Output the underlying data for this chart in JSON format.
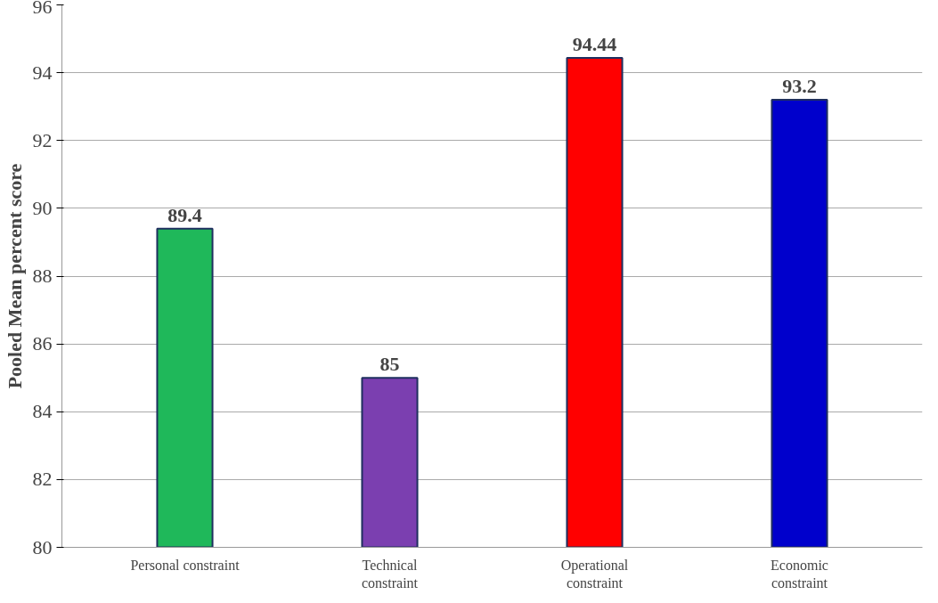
{
  "chart_data": {
    "type": "bar",
    "ylabel": "Pooled Mean percent score",
    "categories": [
      "Personal constraint",
      "Technical\nconstraint",
      "Operational\nconstraint",
      "Economic\nconstraint"
    ],
    "values": [
      89.4,
      85,
      94.44,
      93.2
    ],
    "colors": [
      "#1fb85a",
      "#7b3fb0",
      "#ff0000",
      "#0000cc"
    ],
    "ylim": [
      80,
      96
    ],
    "yticks": [
      80,
      82,
      84,
      86,
      88,
      90,
      92,
      94,
      96
    ],
    "grid": "y",
    "data_labels": true
  }
}
